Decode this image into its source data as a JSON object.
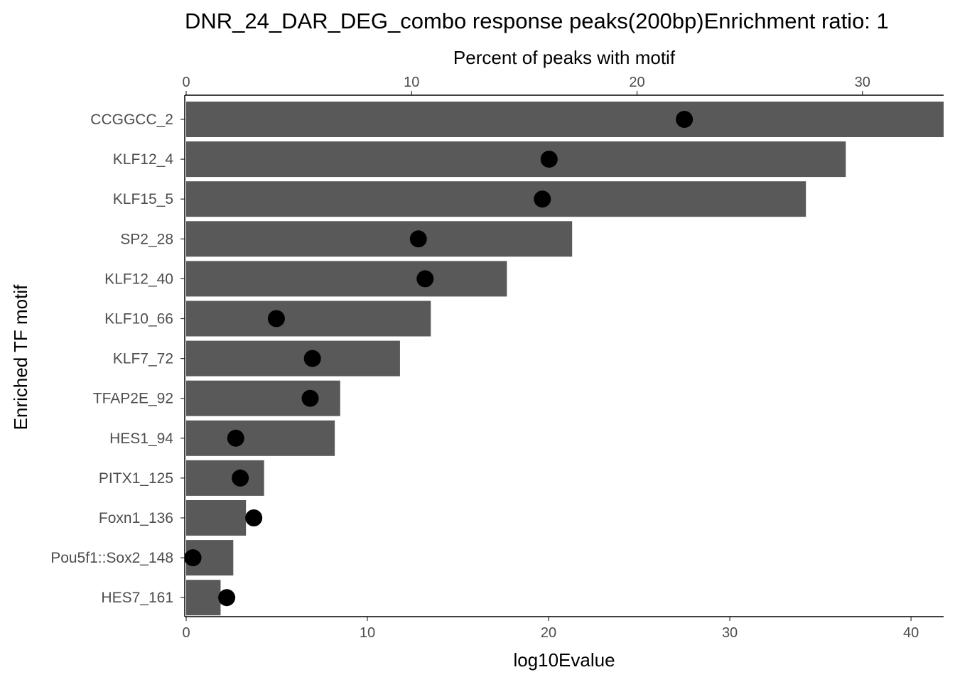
{
  "chart_data": {
    "type": "bar",
    "title": "DNR_24_DAR_DEG_combo response peaks(200bp)Enrichment ratio: 1",
    "xlabel": "log10Evalue",
    "ylabel": "Enriched TF motif",
    "x2label": "Percent of peaks with motif",
    "categories": [
      "CCGGCC_2",
      "KLF12_4",
      "KLF15_5",
      "SP2_28",
      "KLF12_40",
      "KLF10_66",
      "KLF7_72",
      "TFAP2E_92",
      "HES1_94",
      "PITX1_125",
      "Foxn1_136",
      "Pou5f1::Sox2_148",
      "HES7_161"
    ],
    "series": [
      {
        "values": [
          41.8,
          36.4,
          34.2,
          21.3,
          17.7,
          13.5,
          11.8,
          8.5,
          8.2,
          4.3,
          3.3,
          2.6,
          1.9
        ]
      },
      {
        "values": [
          22.1,
          16.1,
          15.8,
          10.3,
          10.6,
          4.0,
          5.6,
          5.5,
          2.2,
          2.4,
          3.0,
          0.3,
          1.8
        ]
      }
    ],
    "xlim": [
      0,
      41.8
    ],
    "x2lim": [
      0,
      33.6
    ],
    "xticks": [
      "0",
      "10",
      "20",
      "30",
      "40"
    ],
    "x2ticks": [
      "0",
      "10",
      "20",
      "30"
    ],
    "grid": false,
    "bar_color": "#595959",
    "point_color": "#000000"
  }
}
